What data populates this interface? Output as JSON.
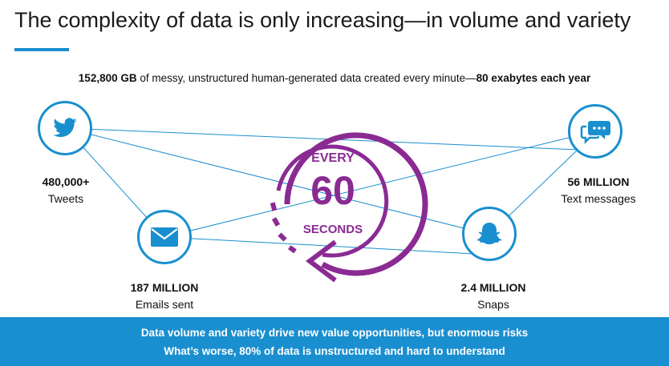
{
  "title": "The complexity of data is only increasing—in volume and variety",
  "subtitle": {
    "lead_bold": "152,800 GB",
    "middle": " of messy, unstructured human-generated data created every minute—",
    "tail_bold": "80 exabytes each year"
  },
  "clock": {
    "top": "EVERY",
    "number": "60",
    "bottom": "SECONDS",
    "color": "#8a2a93"
  },
  "nodes": {
    "tweets": {
      "icon": "twitter-bird-icon",
      "value": "480,000+",
      "label": "Tweets"
    },
    "texts": {
      "icon": "chat-bubbles-icon",
      "value": "56 MILLION",
      "label": "Text messages"
    },
    "emails": {
      "icon": "envelope-icon",
      "value": "187 MILLION",
      "label": "Emails sent"
    },
    "snaps": {
      "icon": "ghost-icon",
      "value": "2.4 MILLION",
      "label": "Snaps"
    }
  },
  "footer": {
    "line1": "Data volume and variety drive new value opportunities, but enormous risks",
    "line2": "What’s worse, 80% of data is unstructured and hard to understand"
  },
  "colors": {
    "accent": "#1a8fd0",
    "clock": "#8a2a93"
  }
}
